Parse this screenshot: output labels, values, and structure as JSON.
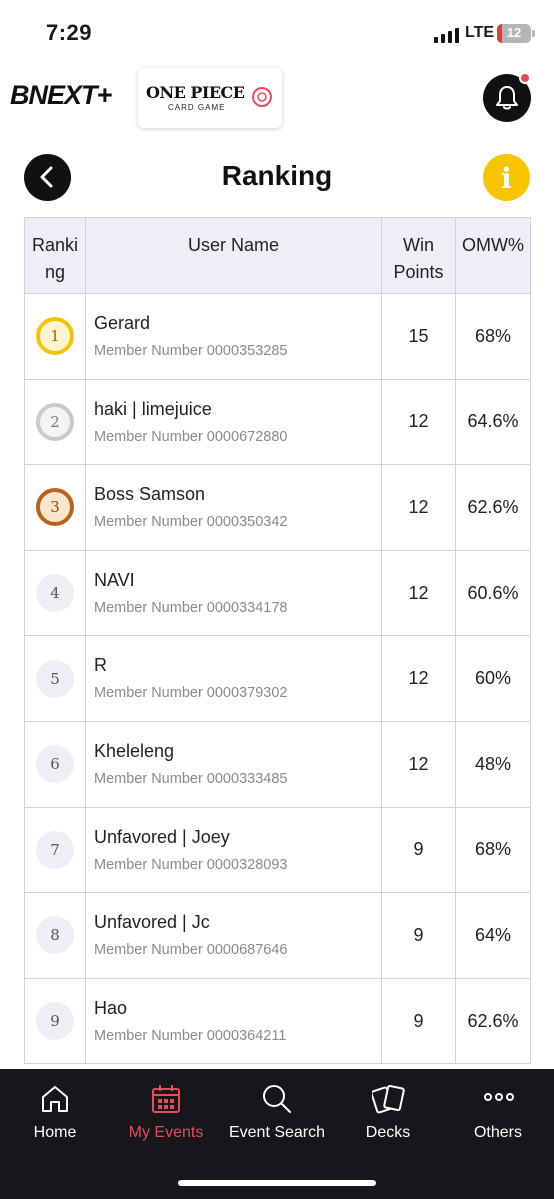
{
  "status_bar": {
    "time": "7:29",
    "network": "LTE",
    "battery": "12"
  },
  "header": {
    "brand_logo": "BNEXT+",
    "game_title": "ONE PIECE",
    "game_subtitle": "CARD GAME"
  },
  "page": {
    "title": "Ranking"
  },
  "table": {
    "columns": {
      "rank_line1": "Ranki",
      "rank_line2": "ng",
      "user": "User Name",
      "win_line1": "Win",
      "win_line2": "Points",
      "omw": "OMW%"
    },
    "rows": [
      {
        "rank": "1",
        "name": "Gerard",
        "member": "Member Number 0000353285",
        "points": "15",
        "omw": "68%"
      },
      {
        "rank": "2",
        "name": "haki | limejuice",
        "member": "Member Number 0000672880",
        "points": "12",
        "omw": "64.6%"
      },
      {
        "rank": "3",
        "name": "Boss Samson",
        "member": "Member Number 0000350342",
        "points": "12",
        "omw": "62.6%"
      },
      {
        "rank": "4",
        "name": "NAVI",
        "member": "Member Number 0000334178",
        "points": "12",
        "omw": "60.6%"
      },
      {
        "rank": "5",
        "name": "R",
        "member": "Member Number 0000379302",
        "points": "12",
        "omw": "60%"
      },
      {
        "rank": "6",
        "name": "Kheleleng",
        "member": "Member Number 0000333485",
        "points": "12",
        "omw": "48%"
      },
      {
        "rank": "7",
        "name": "Unfavored | Joey",
        "member": "Member Number 0000328093",
        "points": "9",
        "omw": "68%"
      },
      {
        "rank": "8",
        "name": "Unfavored | Jc",
        "member": "Member Number 0000687646",
        "points": "9",
        "omw": "64%"
      },
      {
        "rank": "9",
        "name": "Hao",
        "member": "Member Number 0000364211",
        "points": "9",
        "omw": "62.6%"
      }
    ]
  },
  "nav": {
    "home": "Home",
    "my_events": "My Events",
    "event_search": "Event Search",
    "decks": "Decks",
    "others": "Others"
  },
  "colors": {
    "accent_red": "#e34d5e",
    "info_yellow": "#f7c500",
    "nav_bg": "#16161b"
  }
}
